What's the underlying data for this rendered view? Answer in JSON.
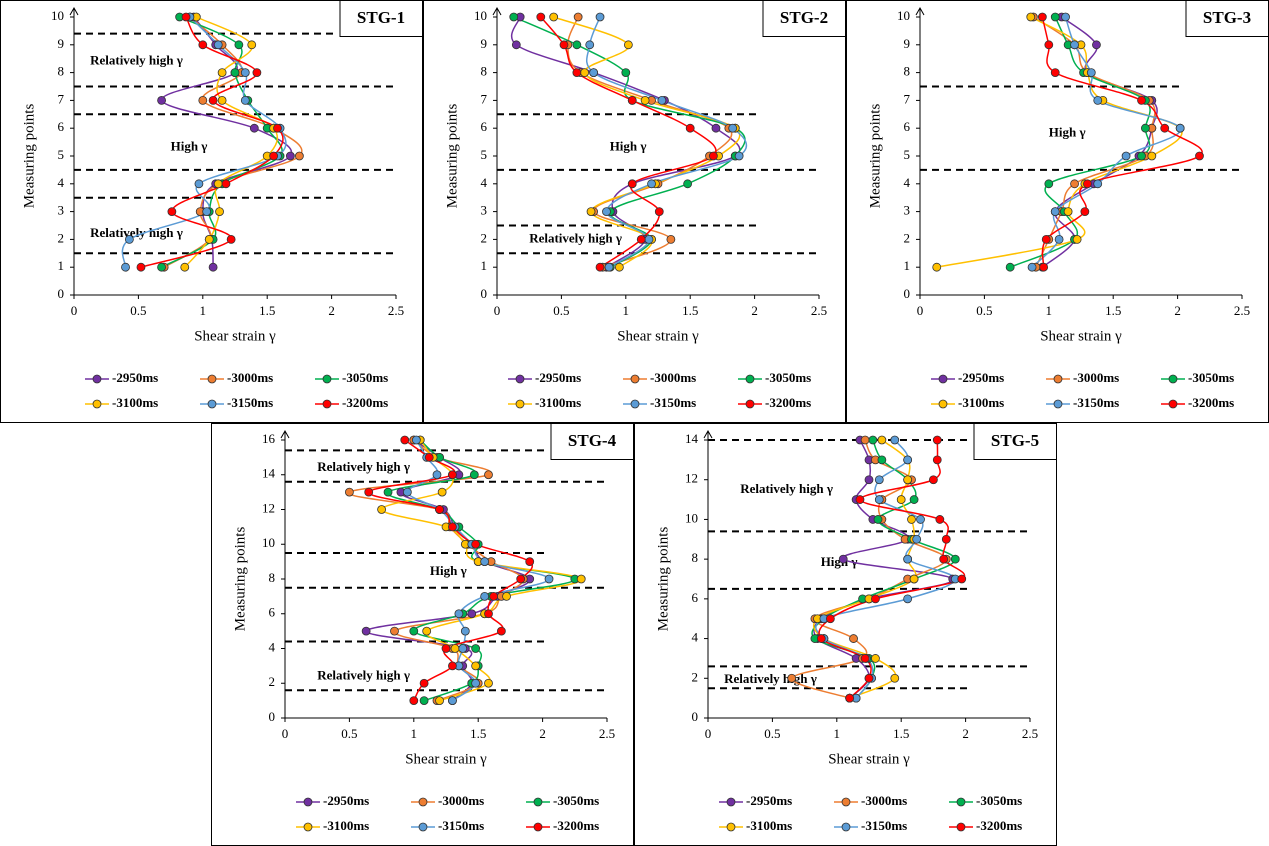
{
  "chart_data": [
    {
      "type": "line",
      "title": "STG-1",
      "xlabel": "Shear strain γ",
      "ylabel": "Measuring points",
      "xlim": [
        0,
        2.5
      ],
      "xticks": [
        0,
        0.5,
        1,
        1.5,
        2,
        2.5
      ],
      "ylim": [
        0,
        10
      ],
      "yticks": [
        0,
        1,
        2,
        3,
        4,
        5,
        6,
        7,
        8,
        9,
        10
      ],
      "y": [
        1,
        2,
        3,
        4,
        5,
        6,
        7,
        8,
        9,
        10
      ],
      "dashed_lines": [
        9.4,
        7.5,
        6.5,
        4.5,
        3.5,
        1.5
      ],
      "annotations": [
        "Relatively high γ",
        "High γ",
        "Relatively high γ"
      ],
      "series": [
        {
          "name": "-2950ms",
          "color": "#7030a0",
          "values": [
            1.08,
            1.07,
            1.0,
            1.1,
            1.68,
            1.4,
            0.68,
            1.25,
            1.1,
            0.93
          ]
        },
        {
          "name": "-3000ms",
          "color": "#ed7d31",
          "values": [
            0.7,
            1.05,
            0.98,
            1.12,
            1.75,
            1.55,
            1.0,
            1.3,
            1.15,
            0.9
          ]
        },
        {
          "name": "-3050ms",
          "color": "#00b050",
          "values": [
            0.68,
            1.08,
            1.05,
            1.15,
            1.6,
            1.5,
            1.35,
            1.25,
            1.28,
            0.82
          ]
        },
        {
          "name": "-3100ms",
          "color": "#ffc000",
          "values": [
            0.86,
            1.05,
            1.13,
            1.12,
            1.5,
            1.55,
            1.15,
            1.15,
            1.38,
            0.95
          ]
        },
        {
          "name": "-3150ms",
          "color": "#5b9bd5",
          "values": [
            0.4,
            0.43,
            1.03,
            0.97,
            1.58,
            1.6,
            1.33,
            1.33,
            1.12,
            0.9
          ]
        },
        {
          "name": "-3200ms",
          "color": "#ff0000",
          "values": [
            0.52,
            1.22,
            0.76,
            1.18,
            1.55,
            1.58,
            1.08,
            1.42,
            1.0,
            0.87
          ]
        }
      ]
    },
    {
      "type": "line",
      "title": "STG-2",
      "xlabel": "Shear strain γ",
      "ylabel": "Measuring points",
      "xlim": [
        0,
        2.5
      ],
      "xticks": [
        0,
        0.5,
        1,
        1.5,
        2,
        2.5
      ],
      "ylim": [
        0,
        10
      ],
      "yticks": [
        0,
        1,
        2,
        3,
        4,
        5,
        6,
        7,
        8,
        9,
        10
      ],
      "y": [
        1,
        2,
        3,
        4,
        5,
        6,
        7,
        8,
        9,
        10
      ],
      "dashed_lines": [
        6.5,
        4.5,
        2.5,
        1.5
      ],
      "annotations": [
        "High γ",
        "Relatively high γ"
      ],
      "series": [
        {
          "name": "-2950ms",
          "color": "#7030a0",
          "values": [
            0.85,
            1.15,
            0.9,
            1.05,
            1.85,
            1.7,
            1.3,
            0.75,
            0.15,
            0.18
          ]
        },
        {
          "name": "-3000ms",
          "color": "#ed7d31",
          "values": [
            0.82,
            1.35,
            0.75,
            1.25,
            1.65,
            1.8,
            1.2,
            0.65,
            0.55,
            0.63
          ]
        },
        {
          "name": "-3050ms",
          "color": "#00b050",
          "values": [
            0.88,
            1.2,
            0.88,
            1.48,
            1.85,
            1.85,
            1.05,
            1.0,
            0.62,
            0.13
          ]
        },
        {
          "name": "-3100ms",
          "color": "#ffc000",
          "values": [
            0.95,
            1.2,
            0.73,
            1.23,
            1.72,
            1.85,
            1.15,
            0.68,
            1.02,
            0.44
          ]
        },
        {
          "name": "-3150ms",
          "color": "#5b9bd5",
          "values": [
            0.87,
            1.18,
            0.85,
            1.2,
            1.88,
            1.83,
            1.28,
            0.75,
            0.72,
            0.8
          ]
        },
        {
          "name": "-3200ms",
          "color": "#ff0000",
          "values": [
            0.8,
            1.12,
            1.26,
            1.05,
            1.68,
            1.5,
            1.05,
            0.62,
            0.52,
            0.34
          ]
        }
      ]
    },
    {
      "type": "line",
      "title": "STG-3",
      "xlabel": "Shear strain γ",
      "ylabel": "Measuring points",
      "xlim": [
        0,
        2.5
      ],
      "xticks": [
        0,
        0.5,
        1,
        1.5,
        2,
        2.5
      ],
      "ylim": [
        0,
        10
      ],
      "yticks": [
        0,
        1,
        2,
        3,
        4,
        5,
        6,
        7,
        8,
        9,
        10
      ],
      "y": [
        1,
        2,
        3,
        4,
        5,
        6,
        7,
        8,
        9,
        10
      ],
      "dashed_lines": [
        7.5,
        4.5
      ],
      "annotations": [
        "High γ"
      ],
      "series": [
        {
          "name": "-2950ms",
          "color": "#7030a0",
          "values": [
            0.95,
            1.2,
            1.05,
            1.35,
            1.7,
            1.8,
            1.8,
            1.3,
            1.37,
            1.1
          ]
        },
        {
          "name": "-3000ms",
          "color": "#ed7d31",
          "values": [
            0.9,
            1.0,
            1.1,
            1.2,
            1.75,
            1.8,
            1.78,
            1.3,
            1.2,
            0.88
          ]
        },
        {
          "name": "-3050ms",
          "color": "#00b050",
          "values": [
            0.7,
            1.2,
            1.12,
            1.0,
            1.72,
            1.75,
            1.75,
            1.27,
            1.15,
            1.05
          ]
        },
        {
          "name": "-3100ms",
          "color": "#ffc000",
          "values": [
            0.13,
            1.22,
            1.15,
            1.28,
            1.8,
            2.02,
            1.42,
            1.3,
            1.25,
            0.86
          ]
        },
        {
          "name": "-3150ms",
          "color": "#5b9bd5",
          "values": [
            0.87,
            1.08,
            1.05,
            1.38,
            1.6,
            2.02,
            1.38,
            1.33,
            1.2,
            1.13
          ]
        },
        {
          "name": "-3200ms",
          "color": "#ff0000",
          "values": [
            0.96,
            0.98,
            1.28,
            1.3,
            2.17,
            1.9,
            1.72,
            1.05,
            1.0,
            0.95
          ]
        }
      ]
    },
    {
      "type": "line",
      "title": "STG-4",
      "xlabel": "Shear strain γ",
      "ylabel": "Measuring points",
      "xlim": [
        0,
        2.5
      ],
      "xticks": [
        0,
        0.5,
        1,
        1.5,
        2,
        2.5
      ],
      "ylim": [
        0,
        16
      ],
      "yticks": [
        0,
        2,
        4,
        6,
        8,
        10,
        12,
        14,
        16
      ],
      "y": [
        1,
        2,
        3,
        4,
        5,
        6,
        7,
        8,
        9,
        10,
        11,
        12,
        13,
        14,
        15,
        16
      ],
      "dashed_lines": [
        15.4,
        13.6,
        9.5,
        7.5,
        4.4,
        1.6
      ],
      "annotations": [
        "Relatively high γ",
        "High γ",
        "Relatively high γ"
      ],
      "series": [
        {
          "name": "-2950ms",
          "color": "#7030a0",
          "values": [
            1.3,
            1.45,
            1.38,
            1.4,
            0.63,
            1.45,
            1.65,
            1.9,
            1.55,
            1.45,
            1.32,
            1.23,
            0.9,
            1.35,
            1.2,
            1.0
          ]
        },
        {
          "name": "-3000ms",
          "color": "#ed7d31",
          "values": [
            1.18,
            1.5,
            1.35,
            1.3,
            0.85,
            1.55,
            1.68,
            1.85,
            1.6,
            1.42,
            1.28,
            1.2,
            0.5,
            1.58,
            1.18,
            1.0
          ]
        },
        {
          "name": "-3050ms",
          "color": "#00b050",
          "values": [
            1.08,
            1.45,
            1.5,
            1.48,
            1.0,
            1.38,
            1.6,
            2.25,
            1.5,
            1.5,
            1.35,
            1.2,
            0.8,
            1.47,
            1.2,
            1.05
          ]
        },
        {
          "name": "-3100ms",
          "color": "#ffc000",
          "values": [
            1.2,
            1.58,
            1.48,
            1.32,
            1.1,
            1.55,
            1.72,
            2.3,
            1.5,
            1.4,
            1.25,
            0.75,
            1.22,
            1.3,
            1.15,
            1.05
          ]
        },
        {
          "name": "-3150ms",
          "color": "#5b9bd5",
          "values": [
            1.3,
            1.48,
            1.35,
            1.38,
            1.4,
            1.35,
            1.55,
            2.05,
            1.55,
            1.45,
            1.32,
            1.2,
            0.95,
            1.18,
            1.1,
            1.02
          ]
        },
        {
          "name": "-3200ms",
          "color": "#ff0000",
          "values": [
            1.0,
            1.08,
            1.3,
            1.25,
            1.68,
            1.58,
            1.62,
            1.83,
            1.9,
            1.48,
            1.3,
            1.2,
            0.65,
            1.3,
            1.12,
            0.93
          ]
        }
      ]
    },
    {
      "type": "line",
      "title": "STG-5",
      "xlabel": "Shear strain γ",
      "ylabel": "Measuring points",
      "xlim": [
        0,
        2.5
      ],
      "xticks": [
        0,
        0.5,
        1,
        1.5,
        2,
        2.5
      ],
      "ylim": [
        0,
        14
      ],
      "yticks": [
        0,
        2,
        4,
        6,
        8,
        10,
        12,
        14
      ],
      "y": [
        1,
        2,
        3,
        4,
        5,
        6,
        7,
        8,
        9,
        10,
        11,
        12,
        13,
        14
      ],
      "dashed_lines": [
        14,
        9.4,
        6.5,
        2.6,
        1.5
      ],
      "annotations": [
        "Relatively high γ",
        "High γ",
        "Relatively high γ"
      ],
      "series": [
        {
          "name": "-2950ms",
          "color": "#7030a0",
          "values": [
            1.1,
            1.25,
            1.15,
            0.85,
            0.88,
            1.25,
            1.9,
            1.05,
            1.55,
            1.28,
            1.15,
            1.25,
            1.25,
            1.18
          ]
        },
        {
          "name": "-3000ms",
          "color": "#ed7d31",
          "values": [
            1.1,
            0.65,
            1.2,
            1.13,
            0.83,
            1.25,
            1.55,
            1.85,
            1.53,
            1.35,
            1.35,
            1.58,
            1.3,
            1.22
          ]
        },
        {
          "name": "-3050ms",
          "color": "#00b050",
          "values": [
            1.15,
            1.27,
            1.25,
            0.83,
            0.9,
            1.2,
            1.6,
            1.92,
            1.58,
            1.32,
            1.6,
            1.55,
            1.35,
            1.28
          ]
        },
        {
          "name": "-3100ms",
          "color": "#ffc000",
          "values": [
            1.1,
            1.45,
            1.3,
            0.9,
            0.85,
            1.25,
            1.6,
            1.55,
            1.6,
            1.58,
            1.5,
            1.55,
            1.55,
            1.35
          ]
        },
        {
          "name": "-3150ms",
          "color": "#5b9bd5",
          "values": [
            1.15,
            1.27,
            1.23,
            0.9,
            0.9,
            1.55,
            1.92,
            1.55,
            1.62,
            1.65,
            1.33,
            1.33,
            1.55,
            1.45
          ]
        },
        {
          "name": "-3200ms",
          "color": "#ff0000",
          "values": [
            1.1,
            1.25,
            1.22,
            0.88,
            0.95,
            1.3,
            1.97,
            1.83,
            1.85,
            1.8,
            1.18,
            1.75,
            1.78,
            1.78
          ]
        }
      ]
    }
  ]
}
